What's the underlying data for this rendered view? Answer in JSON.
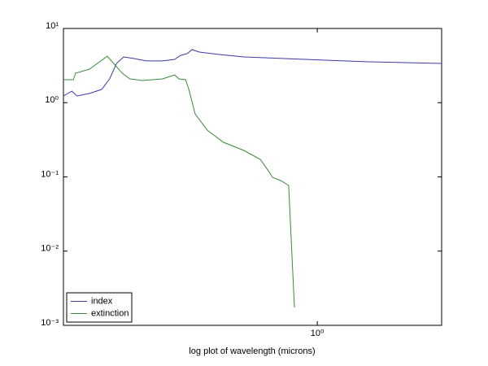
{
  "chart_data": {
    "type": "line",
    "xlabel": "log plot of wavelength (microns)",
    "xscale": "log",
    "yscale": "log",
    "xlim": [
      0.2,
      2.2
    ],
    "xticks": [
      {
        "value": 1,
        "label": "10⁰"
      }
    ],
    "ylim": [
      0.001,
      10
    ],
    "yticks": [
      {
        "value": 0.001,
        "label": "10⁻³"
      },
      {
        "value": 0.01,
        "label": "10⁻²"
      },
      {
        "value": 0.1,
        "label": "10⁻¹"
      },
      {
        "value": 1,
        "label": "10⁰"
      },
      {
        "value": 10,
        "label": "10¹"
      }
    ],
    "legend": "lower left",
    "series": [
      {
        "name": "index",
        "color": "#3a3aa8",
        "x": [
          0.2,
          0.211,
          0.218,
          0.236,
          0.255,
          0.268,
          0.28,
          0.293,
          0.313,
          0.338,
          0.375,
          0.405,
          0.42,
          0.438,
          0.452,
          0.473,
          0.538,
          0.628,
          0.813,
          1.053,
          1.362,
          2.2
        ],
        "values": [
          1.23,
          1.43,
          1.23,
          1.33,
          1.51,
          2.09,
          3.38,
          4.13,
          3.93,
          3.65,
          3.65,
          3.83,
          4.34,
          4.57,
          5.19,
          4.81,
          4.46,
          4.13,
          3.93,
          3.74,
          3.56,
          3.38
        ]
      },
      {
        "name": "extinction",
        "color": "#3a8a3a",
        "x": [
          0.2,
          0.213,
          0.216,
          0.236,
          0.255,
          0.264,
          0.275,
          0.29,
          0.305,
          0.33,
          0.375,
          0.405,
          0.416,
          0.434,
          0.443,
          0.461,
          0.498,
          0.552,
          0.628,
          0.697,
          0.733,
          0.753,
          0.793,
          0.834,
          0.865
        ],
        "values": [
          2.04,
          2.04,
          2.5,
          2.83,
          3.74,
          4.24,
          3.38,
          2.5,
          2.09,
          1.99,
          2.09,
          2.37,
          2.09,
          2.04,
          1.51,
          0.706,
          0.426,
          0.292,
          0.227,
          0.172,
          0.121,
          0.0988,
          0.0893,
          0.0767,
          0.00174
        ]
      }
    ]
  }
}
